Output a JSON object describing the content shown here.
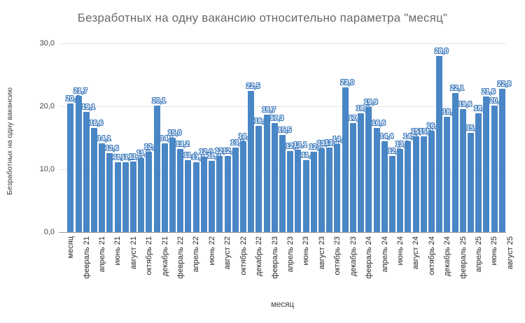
{
  "chart_data": {
    "type": "bar",
    "title": "Безработных на одну вакансию относительно параметра \"месяц\"",
    "xlabel": "месяц",
    "ylabel": "Безработных на одну вакансию",
    "ylim": [
      0,
      30
    ],
    "y_ticks": [
      "0,0",
      "10,0",
      "20,0",
      "30,0"
    ],
    "grid": "horizontal",
    "legend": "none",
    "bar_color": "#4986c6",
    "label_text_color": "#ffffff",
    "label_outline_color": "#3c79bc",
    "x_tick_labels": [
      "месяц",
      "февраль 21",
      "апрель 21",
      "июнь 21",
      "август 21",
      "октябрь 21",
      "декабрь 21",
      "февраль 22",
      "апрель 22",
      "июнь 22",
      "август 22",
      "октябрь 22",
      "декабрь 22",
      "февраль 23",
      "апрель 23",
      "июнь 23",
      "август 23",
      "октябрь 23",
      "декабрь 23",
      "февраль 24",
      "апрель 24",
      "июнь 24",
      "август 24",
      "октябрь 24",
      "декабрь 24",
      "февраль 25",
      "апрель 25",
      "июнь 25",
      "август 25"
    ],
    "values": [
      null,
      20.4,
      21.7,
      19.1,
      16.6,
      14.1,
      12.6,
      11.1,
      11.1,
      11.2,
      11.8,
      12.8,
      20.1,
      14.1,
      15.0,
      13.2,
      11.4,
      11.1,
      12.0,
      11.3,
      12.1,
      12.1,
      13.5,
      14.4,
      22.5,
      16.9,
      18.7,
      17.3,
      15.5,
      12.9,
      13.1,
      11.5,
      12.8,
      13.3,
      13.4,
      14.0,
      23.0,
      17.3,
      18.9,
      19.9,
      16.6,
      14.4,
      12.1,
      13.2,
      14.5,
      15.2,
      15.2,
      16.1,
      28.0,
      18.3,
      22.1,
      19.6,
      15.8,
      18.9,
      21.6,
      20.1,
      22.8
    ]
  }
}
